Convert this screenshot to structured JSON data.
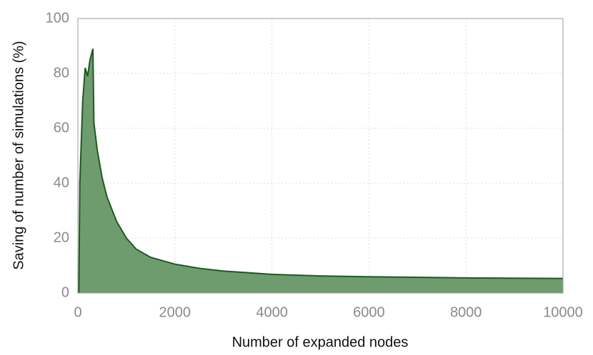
{
  "chart_data": {
    "type": "area",
    "xlabel": "Number of expanded nodes",
    "ylabel": "Saving of number of simulations (%)",
    "x": [
      20,
      40,
      100,
      150,
      200,
      250,
      310,
      330,
      400,
      500,
      600,
      800,
      1000,
      1200,
      1500,
      2000,
      2500,
      3000,
      4000,
      5000,
      6000,
      7000,
      8000,
      9000,
      10000
    ],
    "series": [
      {
        "name": "Saving",
        "color": "#1f5a1f",
        "fill": "#6f9c6f",
        "values": [
          0,
          40,
          70,
          82,
          79,
          85,
          89,
          62,
          52,
          42,
          35,
          26,
          20,
          16,
          13,
          10.5,
          9,
          8,
          6.8,
          6.2,
          5.9,
          5.7,
          5.5,
          5.4,
          5.3
        ]
      }
    ],
    "xlim": [
      0,
      10000
    ],
    "xticks": [
      0,
      2000,
      4000,
      6000,
      8000,
      10000
    ],
    "ylim": [
      0,
      100
    ],
    "yticks": [
      0,
      20,
      40,
      60,
      80,
      100
    ],
    "grid": true
  }
}
